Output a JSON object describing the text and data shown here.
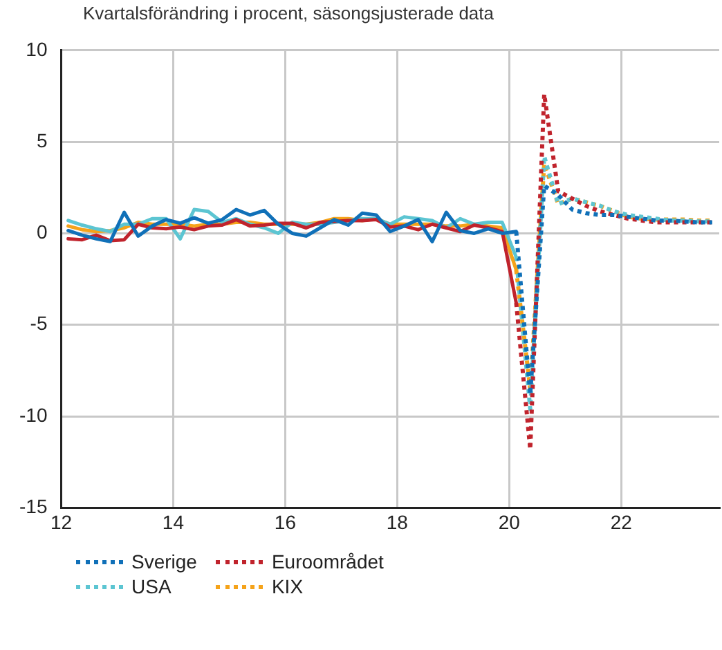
{
  "chart_data": {
    "type": "line",
    "subtitle": "Kvartalsförändring i procent, säsongsjusterade data",
    "xlim": [
      12,
      23.75
    ],
    "xticks": [
      12,
      14,
      16,
      18,
      20,
      22
    ],
    "ylim": [
      -15,
      10
    ],
    "yticks": [
      -15,
      -10,
      -5,
      0,
      5,
      10
    ],
    "grid": true,
    "legend": "bottom",
    "marker": "none",
    "series": [
      {
        "color": "#1070b8",
        "line_style": "solid",
        "x": [
          12.125,
          12.375,
          12.625,
          12.875,
          13.125,
          13.375,
          13.625,
          13.875,
          14.125,
          14.375,
          14.625,
          14.875,
          15.125,
          15.375,
          15.625,
          15.875,
          16.125,
          16.375,
          16.625,
          16.875,
          17.125,
          17.375,
          17.625,
          17.875,
          18.125,
          18.375,
          18.625,
          18.875,
          19.125,
          19.375,
          19.625,
          19.875,
          20.125
        ],
        "values": [
          0.15,
          -0.1,
          -0.3,
          -0.45,
          1.15,
          -0.15,
          0.4,
          0.75,
          0.55,
          0.85,
          0.55,
          0.75,
          1.3,
          1.0,
          1.25,
          0.5,
          0.0,
          -0.15,
          0.3,
          0.75,
          0.45,
          1.1,
          1.0,
          0.1,
          0.4,
          0.75,
          -0.45,
          1.15,
          0.15,
          0.0,
          0.25,
          0.0,
          0.1
        ]
      },
      {
        "color": "#c0232c",
        "line_style": "solid",
        "x": [
          12.125,
          12.375,
          12.625,
          12.875,
          13.125,
          13.375,
          13.625,
          13.875,
          14.125,
          14.375,
          14.625,
          14.875,
          15.125,
          15.375,
          15.625,
          15.875,
          16.125,
          16.375,
          16.625,
          16.875,
          17.125,
          17.375,
          17.625,
          17.875,
          18.125,
          18.375,
          18.625,
          18.875,
          19.125,
          19.375,
          19.625,
          19.875,
          20.125
        ],
        "values": [
          -0.3,
          -0.35,
          -0.1,
          -0.4,
          -0.35,
          0.5,
          0.3,
          0.25,
          0.35,
          0.2,
          0.4,
          0.45,
          0.75,
          0.4,
          0.45,
          0.55,
          0.55,
          0.3,
          0.6,
          0.65,
          0.7,
          0.7,
          0.75,
          0.35,
          0.4,
          0.2,
          0.5,
          0.3,
          0.1,
          0.45,
          0.3,
          0.1,
          -3.8
        ]
      },
      {
        "color": "#5cc5d2",
        "line_style": "solid",
        "x": [
          12.125,
          12.375,
          12.625,
          12.875,
          13.125,
          13.375,
          13.625,
          13.875,
          14.125,
          14.375,
          14.625,
          14.875,
          15.125,
          15.375,
          15.625,
          15.875,
          16.125,
          16.375,
          16.625,
          16.875,
          17.125,
          17.375,
          17.625,
          17.875,
          18.125,
          18.375,
          18.625,
          18.875,
          19.125,
          19.375,
          19.625,
          19.875,
          20.125
        ],
        "values": [
          0.7,
          0.45,
          0.25,
          0.1,
          0.5,
          0.5,
          0.8,
          0.8,
          -0.3,
          1.3,
          1.2,
          0.6,
          0.8,
          0.5,
          0.3,
          0.0,
          0.6,
          0.5,
          0.5,
          0.6,
          0.7,
          0.8,
          0.8,
          0.5,
          0.9,
          0.8,
          0.7,
          0.3,
          0.8,
          0.5,
          0.6,
          0.6,
          -1.3
        ]
      },
      {
        "color": "#f5a31a",
        "line_style": "solid",
        "x": [
          12.125,
          12.375,
          12.625,
          12.875,
          13.125,
          13.375,
          13.625,
          13.875,
          14.125,
          14.375,
          14.625,
          14.875,
          15.125,
          15.375,
          15.625,
          15.875,
          16.125,
          16.375,
          16.625,
          16.875,
          17.125,
          17.375,
          17.625,
          17.875,
          18.125,
          18.375,
          18.625,
          18.875,
          19.125,
          19.375,
          19.625,
          19.875,
          20.125
        ],
        "values": [
          0.4,
          0.2,
          0.1,
          0.15,
          0.3,
          0.6,
          0.5,
          0.5,
          0.5,
          0.4,
          0.5,
          0.5,
          0.6,
          0.6,
          0.5,
          0.5,
          0.5,
          0.5,
          0.6,
          0.8,
          0.8,
          0.7,
          0.8,
          0.5,
          0.5,
          0.5,
          0.5,
          0.4,
          0.4,
          0.5,
          0.4,
          0.3,
          -2.0
        ]
      },
      {
        "name": "Sverige",
        "color": "#1070b8",
        "line_style": "dotted",
        "x": [
          20.125,
          20.375,
          20.625,
          20.875,
          21.125,
          21.375,
          21.625,
          21.875,
          22.125,
          22.375,
          22.625,
          22.875,
          23.125,
          23.375,
          23.625
        ],
        "values": [
          0.1,
          -8.8,
          2.6,
          2.1,
          1.3,
          1.1,
          1.0,
          1.0,
          0.9,
          0.8,
          0.7,
          0.7,
          0.65,
          0.6,
          0.6
        ]
      },
      {
        "name": "Euroområdet",
        "color": "#c0232c",
        "line_style": "dotted",
        "x": [
          20.125,
          20.375,
          20.625,
          20.875,
          21.125,
          21.375,
          21.625,
          21.875,
          22.125,
          22.375,
          22.625,
          22.875,
          23.125,
          23.375,
          23.625
        ],
        "values": [
          -3.8,
          -11.8,
          7.6,
          2.3,
          1.9,
          1.5,
          1.2,
          1.0,
          0.8,
          0.7,
          0.6,
          0.6,
          0.6,
          0.6,
          0.6
        ]
      },
      {
        "name": "USA",
        "color": "#5cc5d2",
        "line_style": "dotted",
        "x": [
          20.125,
          20.375,
          20.625,
          20.875,
          21.125,
          21.375,
          21.625,
          21.875,
          22.125,
          22.375,
          22.625,
          22.875,
          23.125,
          23.375,
          23.625
        ],
        "values": [
          -1.3,
          -9.6,
          4.2,
          1.6,
          1.9,
          1.7,
          1.5,
          1.2,
          1.0,
          0.9,
          0.8,
          0.7,
          0.7,
          0.65,
          0.65
        ]
      },
      {
        "name": "KIX",
        "color": "#f5a31a",
        "line_style": "dotted",
        "x": [
          20.125,
          20.375,
          20.625,
          20.875,
          21.125,
          21.375,
          21.625,
          21.875,
          22.125,
          22.375,
          22.625,
          22.875,
          23.125,
          23.375,
          23.625
        ],
        "values": [
          -2.0,
          -8.5,
          3.8,
          1.6,
          1.9,
          1.7,
          1.5,
          1.2,
          0.9,
          0.8,
          0.75,
          0.75,
          0.75,
          0.7,
          0.7
        ]
      }
    ]
  }
}
